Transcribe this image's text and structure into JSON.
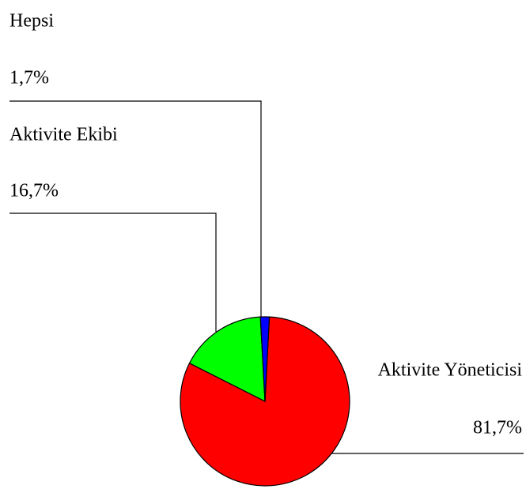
{
  "chart_data": {
    "type": "pie",
    "categories": [
      "Aktivite Yöneticisi",
      "Aktivite Ekibi",
      "Hepsi"
    ],
    "values": [
      81.7,
      16.7,
      1.7
    ],
    "value_labels": [
      "81,7%",
      "16,7%",
      "1,7%"
    ],
    "colors": [
      "#ff0000",
      "#00ff00",
      "#0000ff"
    ]
  }
}
